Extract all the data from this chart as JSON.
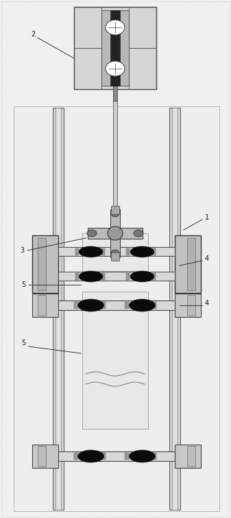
{
  "figsize": [
    3.37,
    7.55
  ],
  "dpi": 100,
  "bg_color": "#f0f0f0",
  "inner_bg": "#eeeeee",
  "lc": "#333333",
  "dc": "#111111",
  "col_color": "#cccccc",
  "col_edge": "#444444",
  "clamp_color": "#d0d0d0",
  "bar_color": "#d8d8d8",
  "roller_color": "#111111",
  "label_fs": 7,
  "label_color": "#111111"
}
